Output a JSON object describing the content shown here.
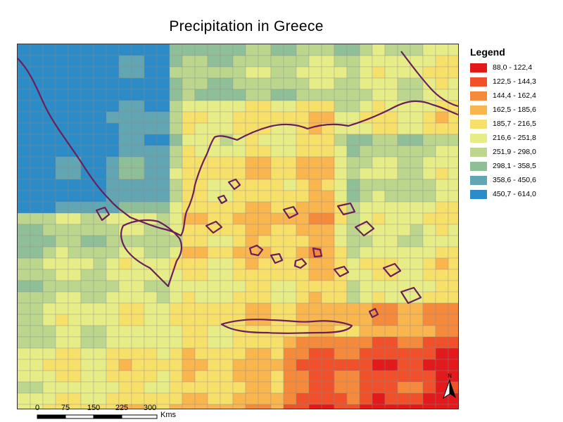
{
  "title": "Precipitation in Greece",
  "legend": {
    "title": "Legend",
    "classes": [
      {
        "label": "88,0 - 122,4",
        "color": "#e31a1c"
      },
      {
        "label": "122,5 - 144,3",
        "color": "#f0502a"
      },
      {
        "label": "144,4 - 162,4",
        "color": "#f58a3a"
      },
      {
        "label": "162,5 - 185,6",
        "color": "#f9b54e"
      },
      {
        "label": "185,7 - 216,5",
        "color": "#f7e06a"
      },
      {
        "label": "216,6 - 251,8",
        "color": "#e6ec86"
      },
      {
        "label": "251,9 - 298,0",
        "color": "#bcd68e"
      },
      {
        "label": "298,1 - 358,5",
        "color": "#8fbf96"
      },
      {
        "label": "358,6 - 450,6",
        "color": "#62a6b4"
      },
      {
        "label": "450,7 - 614,0",
        "color": "#2b8cc7"
      }
    ]
  },
  "scale_bar": {
    "ticks": [
      "0",
      "75",
      "150",
      "225",
      "300"
    ],
    "units": "Kms"
  },
  "north_arrow": {
    "label": "N",
    "icon": "north-arrow-icon"
  },
  "map_colors": {
    "coastline": "#6a1f5a",
    "grid_line": "#8a8a8a"
  }
}
